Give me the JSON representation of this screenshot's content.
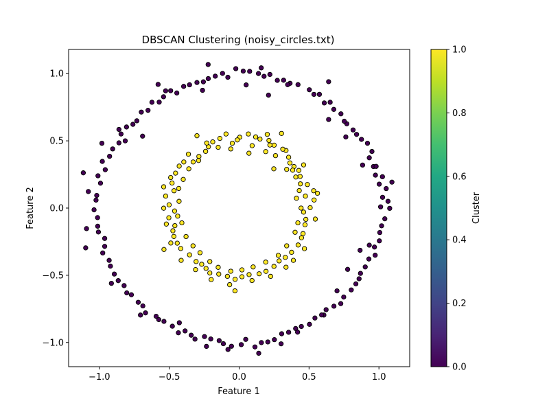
{
  "chart_data": {
    "type": "scatter",
    "title": "DBSCAN Clustering (noisy_circles.txt)",
    "xlabel": "Feature 1",
    "ylabel": "Feature 2",
    "xlim": [
      -1.22,
      1.22
    ],
    "ylim": [
      -1.18,
      1.18
    ],
    "xticks": [
      -1.0,
      -0.5,
      0.0,
      0.5,
      1.0
    ],
    "xtick_labels": [
      "−1.0",
      "−0.5",
      "0.0",
      "0.5",
      "1.0"
    ],
    "yticks": [
      -1.0,
      -0.5,
      0.0,
      0.5,
      1.0
    ],
    "ytick_labels": [
      "−1.0",
      "−0.5",
      "0.0",
      "0.5",
      "1.0"
    ],
    "grid": false,
    "colormap": "viridis",
    "colorbar": {
      "label": "Cluster",
      "range": [
        0.0,
        1.0
      ],
      "ticks": [
        0.0,
        0.2,
        0.4,
        0.6,
        0.8,
        1.0
      ],
      "tick_labels": [
        "0.0",
        "0.2",
        "0.4",
        "0.6",
        "0.8",
        "1.0"
      ]
    },
    "series": [
      {
        "cluster": 0,
        "color": "#440154",
        "points": [
          [
            1.012,
            0.009
          ],
          [
            1.026,
            0.08
          ],
          [
            1.002,
            0.178
          ],
          [
            1.025,
            0.233
          ],
          [
            0.975,
            0.245
          ],
          [
            0.961,
            0.309
          ],
          [
            0.931,
            0.374
          ],
          [
            0.95,
            0.421
          ],
          [
            0.918,
            0.482
          ],
          [
            0.875,
            0.511
          ],
          [
            0.84,
            0.548
          ],
          [
            0.815,
            0.581
          ],
          [
            0.77,
            0.627
          ],
          [
            0.752,
            0.646
          ],
          [
            0.728,
            0.701
          ],
          [
            0.677,
            0.734
          ],
          [
            0.651,
            0.787
          ],
          [
            0.609,
            0.782
          ],
          [
            0.574,
            0.846
          ],
          [
            0.535,
            0.846
          ],
          [
            0.502,
            0.88
          ],
          [
            0.421,
            0.918
          ],
          [
            0.364,
            0.928
          ],
          [
            0.318,
            0.951
          ],
          [
            0.273,
            0.95
          ],
          [
            0.22,
            0.994
          ],
          [
            0.178,
            0.98
          ],
          [
            0.138,
            1.001
          ],
          [
            0.075,
            1.017
          ],
          [
            0.029,
            1.019
          ],
          [
            -0.024,
            1.037
          ],
          [
            -0.081,
            0.973
          ],
          [
            -0.119,
            1.002
          ],
          [
            -0.171,
            0.981
          ],
          [
            -0.221,
            0.963
          ],
          [
            -0.256,
            0.939
          ],
          [
            -0.302,
            0.934
          ],
          [
            -0.355,
            0.917
          ],
          [
            -0.397,
            0.905
          ],
          [
            -0.446,
            0.856
          ],
          [
            -0.49,
            0.873
          ],
          [
            -0.541,
            0.828
          ],
          [
            -0.572,
            0.788
          ],
          [
            -0.624,
            0.787
          ],
          [
            -0.652,
            0.727
          ],
          [
            -0.7,
            0.714
          ],
          [
            -0.732,
            0.649
          ],
          [
            -0.76,
            0.623
          ],
          [
            -0.806,
            0.603
          ],
          [
            -0.845,
            0.551
          ],
          [
            -0.86,
            0.485
          ],
          [
            -0.905,
            0.44
          ],
          [
            -0.927,
            0.385
          ],
          [
            -0.979,
            0.347
          ],
          [
            -0.958,
            0.285
          ],
          [
            -1.01,
            0.24
          ],
          [
            -0.992,
            0.185
          ],
          [
            -1.019,
            0.094
          ],
          [
            -1.024,
            0.059
          ],
          [
            -1.038,
            -0.013
          ],
          [
            -1.013,
            -0.071
          ],
          [
            -1.012,
            -0.135
          ],
          [
            -1.007,
            -0.178
          ],
          [
            -0.962,
            -0.226
          ],
          [
            -0.962,
            -0.285
          ],
          [
            -0.976,
            -0.334
          ],
          [
            -0.93,
            -0.389
          ],
          [
            -0.921,
            -0.432
          ],
          [
            -0.893,
            -0.491
          ],
          [
            -0.865,
            -0.54
          ],
          [
            -0.823,
            -0.577
          ],
          [
            -0.804,
            -0.631
          ],
          [
            -0.771,
            -0.645
          ],
          [
            -0.722,
            -0.701
          ],
          [
            -0.689,
            -0.728
          ],
          [
            -0.67,
            -0.78
          ],
          [
            -0.594,
            -0.805
          ],
          [
            -0.575,
            -0.83
          ],
          [
            -0.538,
            -0.843
          ],
          [
            -0.478,
            -0.879
          ],
          [
            -0.435,
            -0.928
          ],
          [
            -0.387,
            -0.914
          ],
          [
            -0.343,
            -0.946
          ],
          [
            -0.316,
            -0.975
          ],
          [
            -0.248,
            -0.956
          ],
          [
            -0.203,
            -0.974
          ],
          [
            -0.143,
            -0.986
          ],
          [
            -0.113,
            -1.009
          ],
          [
            -0.055,
            -1.028
          ],
          [
            0.015,
            -1.016
          ],
          [
            0.047,
            -0.977
          ],
          [
            0.113,
            -1.033
          ],
          [
            0.159,
            -1.001
          ],
          [
            0.205,
            -0.996
          ],
          [
            0.252,
            -0.979
          ],
          [
            0.304,
            -0.935
          ],
          [
            0.354,
            -0.924
          ],
          [
            0.404,
            -0.896
          ],
          [
            0.445,
            -0.881
          ],
          [
            0.503,
            -0.865
          ],
          [
            0.542,
            -0.818
          ],
          [
            0.606,
            -0.796
          ],
          [
            0.622,
            -0.756
          ],
          [
            0.678,
            -0.73
          ],
          [
            0.727,
            -0.711
          ],
          [
            0.748,
            -0.662
          ],
          [
            0.802,
            -0.609
          ],
          [
            0.835,
            -0.564
          ],
          [
            0.858,
            -0.526
          ],
          [
            0.868,
            -0.486
          ],
          [
            0.902,
            -0.438
          ],
          [
            0.928,
            -0.379
          ],
          [
            0.973,
            -0.351
          ],
          [
            0.968,
            -0.29
          ],
          [
            1.003,
            -0.244
          ],
          [
            1.006,
            -0.182
          ],
          [
            1.019,
            -0.132
          ],
          [
            1.042,
            -0.08
          ],
          [
            1.065,
            0.05
          ],
          [
            1.052,
            0.145
          ],
          [
            -1.115,
            0.262
          ],
          [
            -1.098,
            -0.296
          ],
          [
            -0.982,
            0.482
          ],
          [
            -0.815,
            0.5
          ],
          [
            -0.691,
            0.535
          ],
          [
            -0.526,
            0.872
          ],
          [
            -0.262,
            0.876
          ],
          [
            0.05,
            0.916
          ],
          [
            0.158,
            1.043
          ],
          [
            0.347,
            0.918
          ],
          [
            0.64,
            0.659
          ],
          [
            0.763,
            0.529
          ],
          [
            0.883,
            0.32
          ],
          [
            1.093,
            0.193
          ],
          [
            1.077,
            -0.002
          ],
          [
            0.931,
            -0.276
          ],
          [
            0.865,
            -0.314
          ],
          [
            0.776,
            -0.456
          ],
          [
            0.7,
            -0.616
          ],
          [
            0.59,
            -0.795
          ],
          [
            0.418,
            -0.923
          ],
          [
            0.3,
            -1.01
          ],
          [
            0.14,
            -1.08
          ],
          [
            -0.08,
            -1.052
          ],
          [
            -0.234,
            -1.029
          ],
          [
            -0.428,
            -0.853
          ],
          [
            -0.706,
            -0.796
          ],
          [
            -0.914,
            -0.56
          ],
          [
            -1.092,
            -0.153
          ],
          [
            -1.079,
            0.123
          ],
          [
            -0.86,
            0.585
          ],
          [
            -0.58,
            0.92
          ],
          [
            -0.222,
            1.068
          ],
          [
            0.21,
            0.84
          ],
          [
            0.64,
            0.94
          ],
          [
            0.98,
            0.31
          ]
        ]
      },
      {
        "cluster": 1,
        "color": "#fde725",
        "points": [
          [
            0.508,
            0.003
          ],
          [
            0.536,
            0.06
          ],
          [
            0.474,
            0.089
          ],
          [
            0.533,
            0.129
          ],
          [
            0.488,
            0.175
          ],
          [
            0.436,
            0.235
          ],
          [
            0.427,
            0.28
          ],
          [
            0.392,
            0.309
          ],
          [
            0.363,
            0.336
          ],
          [
            0.354,
            0.378
          ],
          [
            0.335,
            0.428
          ],
          [
            0.25,
            0.468
          ],
          [
            0.22,
            0.469
          ],
          [
            0.213,
            0.503
          ],
          [
            0.149,
            0.513
          ],
          [
            0.118,
            0.529
          ],
          [
            0.093,
            0.464
          ],
          [
            0.004,
            0.527
          ],
          [
            -0.013,
            0.507
          ],
          [
            -0.049,
            0.482
          ],
          [
            -0.138,
            0.518
          ],
          [
            -0.189,
            0.492
          ],
          [
            -0.22,
            0.456
          ],
          [
            -0.24,
            0.422
          ],
          [
            -0.288,
            0.384
          ],
          [
            -0.329,
            0.343
          ],
          [
            -0.396,
            0.343
          ],
          [
            -0.429,
            0.312
          ],
          [
            -0.49,
            0.227
          ],
          [
            -0.48,
            0.186
          ],
          [
            -0.466,
            0.129
          ],
          [
            -0.526,
            0.089
          ],
          [
            -0.501,
            0.024
          ],
          [
            -0.462,
            -0.022
          ],
          [
            -0.503,
            -0.072
          ],
          [
            -0.46,
            -0.131
          ],
          [
            -0.474,
            -0.169
          ],
          [
            -0.467,
            -0.211
          ],
          [
            -0.443,
            -0.261
          ],
          [
            -0.418,
            -0.301
          ],
          [
            -0.355,
            -0.348
          ],
          [
            -0.308,
            -0.398
          ],
          [
            -0.268,
            -0.418
          ],
          [
            -0.237,
            -0.449
          ],
          [
            -0.21,
            -0.483
          ],
          [
            -0.146,
            -0.491
          ],
          [
            -0.084,
            -0.508
          ],
          [
            -0.029,
            -0.53
          ],
          [
            0.02,
            -0.511
          ],
          [
            0.071,
            -0.495
          ],
          [
            0.143,
            -0.489
          ],
          [
            0.192,
            -0.471
          ],
          [
            0.249,
            -0.434
          ],
          [
            0.286,
            -0.393
          ],
          [
            0.33,
            -0.367
          ],
          [
            0.375,
            -0.329
          ],
          [
            0.422,
            -0.275
          ],
          [
            0.446,
            -0.221
          ],
          [
            0.457,
            -0.19
          ],
          [
            0.471,
            -0.124
          ],
          [
            0.477,
            -0.084
          ],
          [
            0.461,
            -0.03
          ],
          [
            0.443,
            0.0
          ],
          [
            0.41,
            0.073
          ],
          [
            0.43,
            0.13
          ],
          [
            0.405,
            0.231
          ],
          [
            0.34,
            0.288
          ],
          [
            0.26,
            0.39
          ],
          [
            0.19,
            0.42
          ],
          [
            0.07,
            0.408
          ],
          [
            -0.06,
            0.44
          ],
          [
            -0.15,
            0.452
          ],
          [
            -0.29,
            0.354
          ],
          [
            -0.36,
            0.292
          ],
          [
            -0.4,
            0.213
          ],
          [
            -0.432,
            0.146
          ],
          [
            -0.43,
            0.05
          ],
          [
            -0.44,
            -0.06
          ],
          [
            -0.41,
            -0.11
          ],
          [
            -0.38,
            -0.212
          ],
          [
            -0.33,
            -0.281
          ],
          [
            -0.28,
            -0.332
          ],
          [
            -0.21,
            -0.398
          ],
          [
            -0.15,
            -0.441
          ],
          [
            -0.06,
            -0.47
          ],
          [
            0.02,
            -0.46
          ],
          [
            0.1,
            -0.438
          ],
          [
            0.19,
            -0.402
          ],
          [
            0.28,
            -0.352
          ],
          [
            0.34,
            -0.281
          ],
          [
            0.4,
            -0.18
          ],
          [
            0.42,
            -0.11
          ],
          [
            0.438,
            0.18
          ],
          [
            0.383,
            0.282
          ],
          [
            0.312,
            0.438
          ],
          [
            0.201,
            0.548
          ],
          [
            0.066,
            0.551
          ],
          [
            -0.094,
            0.551
          ],
          [
            -0.232,
            0.484
          ],
          [
            -0.363,
            0.401
          ],
          [
            -0.455,
            0.26
          ],
          [
            -0.54,
            -0.001
          ],
          [
            -0.521,
            -0.119
          ],
          [
            -0.489,
            -0.26
          ],
          [
            -0.415,
            -0.389
          ],
          [
            -0.312,
            -0.458
          ],
          [
            -0.2,
            -0.532
          ],
          [
            -0.068,
            -0.57
          ],
          [
            0.092,
            -0.539
          ],
          [
            0.225,
            -0.508
          ],
          [
            0.335,
            -0.44
          ],
          [
            0.467,
            -0.302
          ],
          [
            0.545,
            -0.082
          ],
          [
            0.56,
            0.11
          ],
          [
            0.461,
            0.321
          ],
          [
            0.303,
            0.555
          ],
          [
            -0.302,
            0.538
          ],
          [
            -0.54,
            0.158
          ],
          [
            -0.538,
            -0.308
          ],
          [
            -0.03,
            -0.616
          ],
          [
            0.388,
            -0.389
          ],
          [
            0.248,
            0.292
          ]
        ]
      }
    ]
  }
}
